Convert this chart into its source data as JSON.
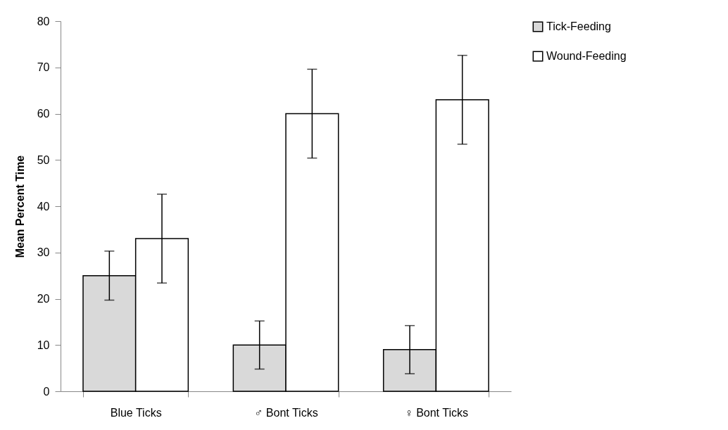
{
  "chart_data": {
    "type": "bar",
    "ylabel": "Mean Percent Time",
    "categories": [
      "Blue Ticks",
      "♂ Bont Ticks",
      "♀ Bont Ticks"
    ],
    "series": [
      {
        "name": "Tick-Feeding",
        "color": "#d9d9d9",
        "values": [
          25,
          10,
          9
        ],
        "errors": [
          5.3,
          5.2,
          5.2
        ]
      },
      {
        "name": "Wound-Feeding",
        "color": "#ffffff",
        "values": [
          33,
          60,
          63
        ],
        "errors": [
          9.6,
          9.6,
          9.6
        ]
      }
    ],
    "ylim": [
      0,
      80
    ],
    "yticks": [
      0,
      10,
      20,
      30,
      40,
      50,
      60,
      70,
      80
    ],
    "grid": false,
    "legend": "right"
  }
}
